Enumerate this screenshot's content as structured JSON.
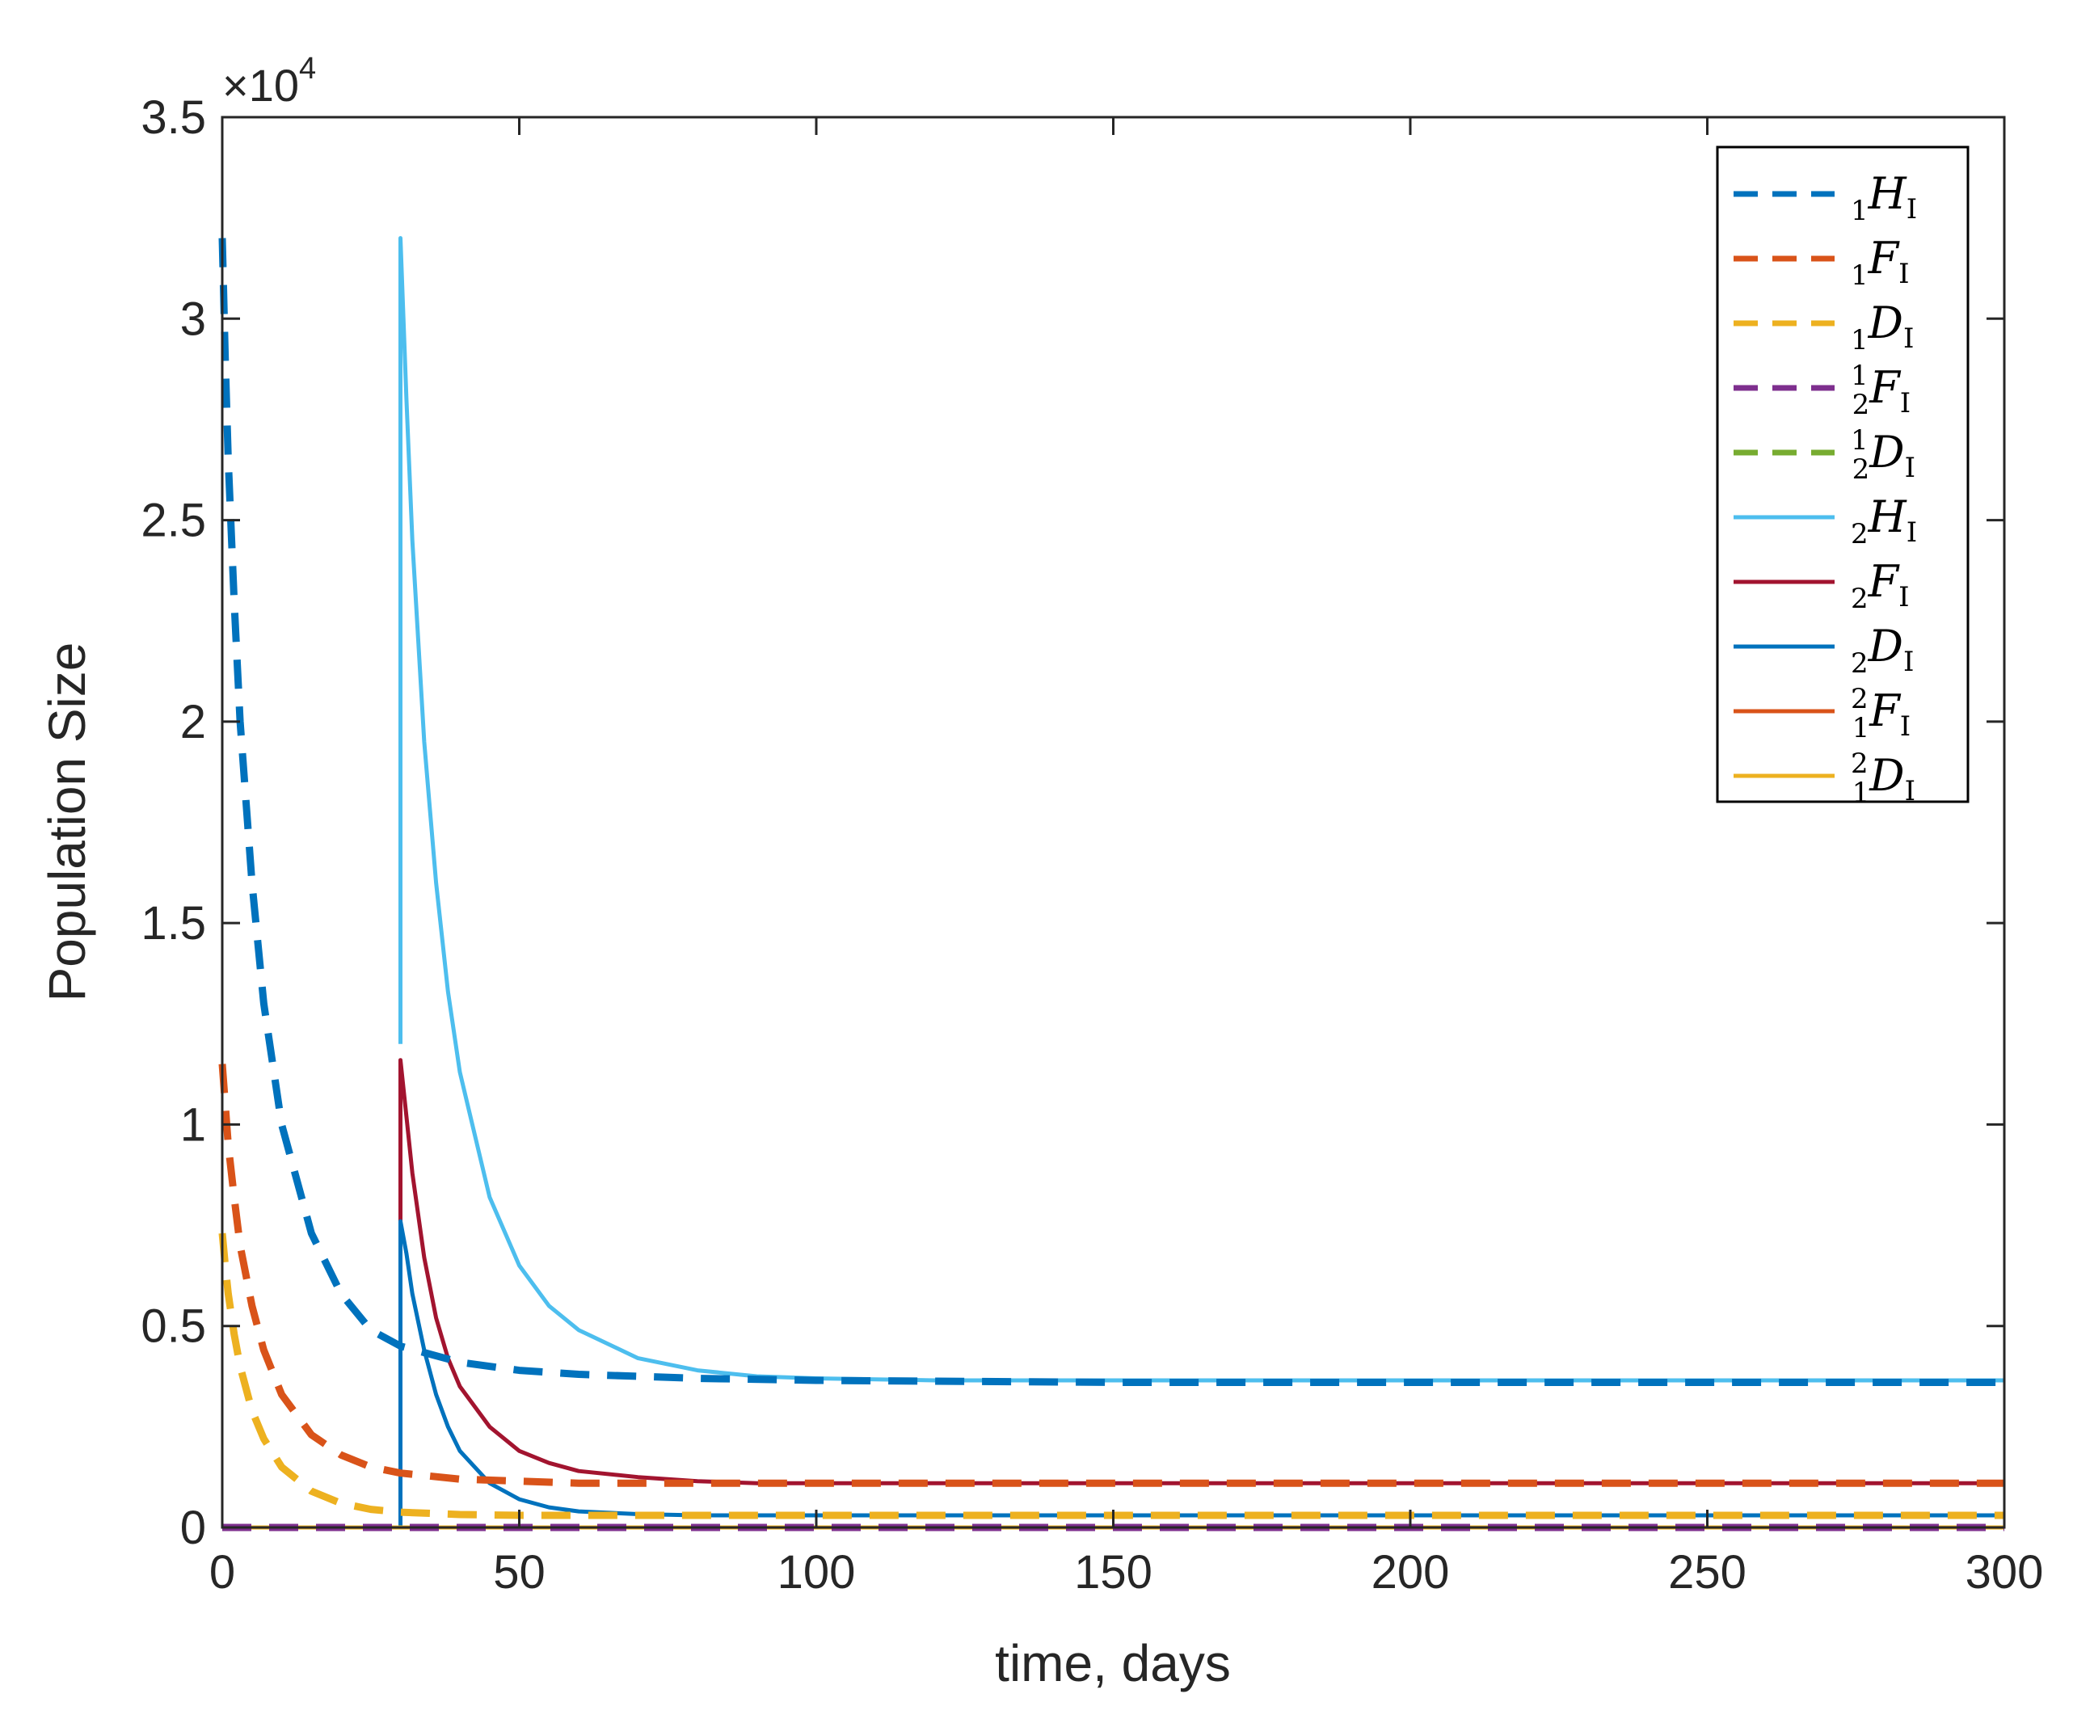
{
  "chart_data": {
    "type": "line",
    "title": "",
    "xlabel": "time, days",
    "ylabel": "Population Size",
    "xlim": [
      0,
      300
    ],
    "ylim": [
      0,
      35000
    ],
    "y_multiplier_label": "×10",
    "y_multiplier_exponent": "4",
    "x_ticks": [
      0,
      50,
      100,
      150,
      200,
      250,
      300
    ],
    "x_tick_labels": [
      "0",
      "50",
      "100",
      "150",
      "200",
      "250",
      "300"
    ],
    "y_ticks": [
      0,
      5000,
      10000,
      15000,
      20000,
      25000,
      30000,
      35000
    ],
    "y_tick_labels": [
      "0",
      "0.5",
      "1",
      "1.5",
      "2",
      "2.5",
      "3",
      "3.5"
    ],
    "legend_position": "top-right",
    "series": [
      {
        "name": "1HI",
        "label_pre": "",
        "label_pre_sub": "1",
        "label_main": "H",
        "label_sub": "I",
        "color": "#0072BD",
        "dash": "dashed",
        "x": [
          0,
          0.5,
          1,
          2,
          3,
          5,
          7,
          10,
          15,
          20,
          25,
          30,
          40,
          50,
          60,
          80,
          100,
          150,
          200,
          250,
          300
        ],
        "y": [
          32000,
          29000,
          26500,
          23000,
          20000,
          16000,
          13000,
          10000,
          7300,
          5800,
          4900,
          4500,
          4100,
          3900,
          3800,
          3700,
          3650,
          3600,
          3600,
          3600,
          3600
        ]
      },
      {
        "name": "1FI",
        "label_pre": "",
        "label_pre_sub": "1",
        "label_main": "F",
        "label_sub": "I",
        "color": "#D95319",
        "dash": "dashed",
        "x": [
          0,
          0.5,
          1,
          2,
          3,
          5,
          7,
          10,
          15,
          20,
          25,
          30,
          40,
          50,
          60,
          80,
          100,
          150,
          200,
          250,
          300
        ],
        "y": [
          11500,
          10500,
          9500,
          8200,
          7000,
          5500,
          4400,
          3300,
          2300,
          1800,
          1500,
          1350,
          1200,
          1150,
          1100,
          1100,
          1100,
          1100,
          1100,
          1100,
          1100
        ]
      },
      {
        "name": "1DI",
        "label_pre": "",
        "label_pre_sub": "1",
        "label_main": "D",
        "label_sub": "I",
        "color": "#EDB120",
        "dash": "dashed",
        "x": [
          0,
          0.5,
          1,
          2,
          3,
          5,
          7,
          10,
          15,
          20,
          25,
          30,
          40,
          50,
          60,
          80,
          100,
          150,
          200,
          250,
          300
        ],
        "y": [
          7300,
          6500,
          5800,
          4800,
          4000,
          2900,
          2200,
          1500,
          900,
          600,
          450,
          380,
          320,
          300,
          300,
          300,
          300,
          300,
          300,
          300,
          300
        ]
      },
      {
        "name": "12FI",
        "label_pre": "1",
        "label_pre_sub": "2",
        "label_main": "F",
        "label_sub": "I",
        "color": "#7E2F8E",
        "dash": "dashed",
        "x": [
          0,
          300
        ],
        "y": [
          0,
          0
        ]
      },
      {
        "name": "12DI",
        "label_pre": "1",
        "label_pre_sub": "2",
        "label_main": "D",
        "label_sub": "I",
        "color": "#77AC30",
        "dash": "dashed",
        "x": [
          0,
          300
        ],
        "y": [
          0,
          0
        ]
      },
      {
        "name": "2HI",
        "label_pre": "",
        "label_pre_sub": "2",
        "label_main": "H",
        "label_sub": "I",
        "color": "#4DBEEE",
        "dash": "solid",
        "x": [
          30,
          30,
          31,
          32,
          34,
          36,
          38,
          40,
          45,
          50,
          55,
          60,
          70,
          80,
          90,
          100,
          120,
          150,
          200,
          250,
          300
        ],
        "y": [
          12000,
          32000,
          28000,
          24500,
          19500,
          16000,
          13300,
          11300,
          8200,
          6500,
          5500,
          4900,
          4200,
          3900,
          3750,
          3700,
          3650,
          3650,
          3650,
          3650,
          3650
        ]
      },
      {
        "name": "2FI",
        "label_pre": "",
        "label_pre_sub": "2",
        "label_main": "F",
        "label_sub": "I",
        "color": "#A2142F",
        "dash": "solid",
        "x": [
          30,
          30,
          31,
          32,
          34,
          36,
          38,
          40,
          45,
          50,
          55,
          60,
          70,
          80,
          90,
          100,
          150,
          200,
          250,
          300
        ],
        "y": [
          5000,
          11600,
          10200,
          8800,
          6700,
          5200,
          4200,
          3500,
          2500,
          1900,
          1600,
          1400,
          1250,
          1150,
          1100,
          1100,
          1100,
          1100,
          1100,
          1100
        ]
      },
      {
        "name": "2DI",
        "label_pre": "",
        "label_pre_sub": "2",
        "label_main": "D",
        "label_sub": "I",
        "color": "#0072BD",
        "dash": "solid",
        "x": [
          30,
          30,
          31,
          32,
          34,
          36,
          38,
          40,
          45,
          50,
          55,
          60,
          70,
          80,
          100,
          150,
          200,
          250,
          300
        ],
        "y": [
          0,
          7600,
          6800,
          5800,
          4400,
          3300,
          2500,
          1900,
          1100,
          700,
          500,
          400,
          330,
          300,
          300,
          300,
          300,
          300,
          300
        ]
      },
      {
        "name": "21FI",
        "label_pre": "2",
        "label_pre_sub": "1",
        "label_main": "F",
        "label_sub": "I",
        "color": "#D95319",
        "dash": "solid",
        "x": [
          0,
          300
        ],
        "y": [
          0,
          0
        ]
      },
      {
        "name": "21DI",
        "label_pre": "2",
        "label_pre_sub": "1",
        "label_main": "D",
        "label_sub": "I",
        "color": "#EDB120",
        "dash": "solid",
        "x": [
          0,
          300
        ],
        "y": [
          0,
          0
        ]
      }
    ]
  }
}
